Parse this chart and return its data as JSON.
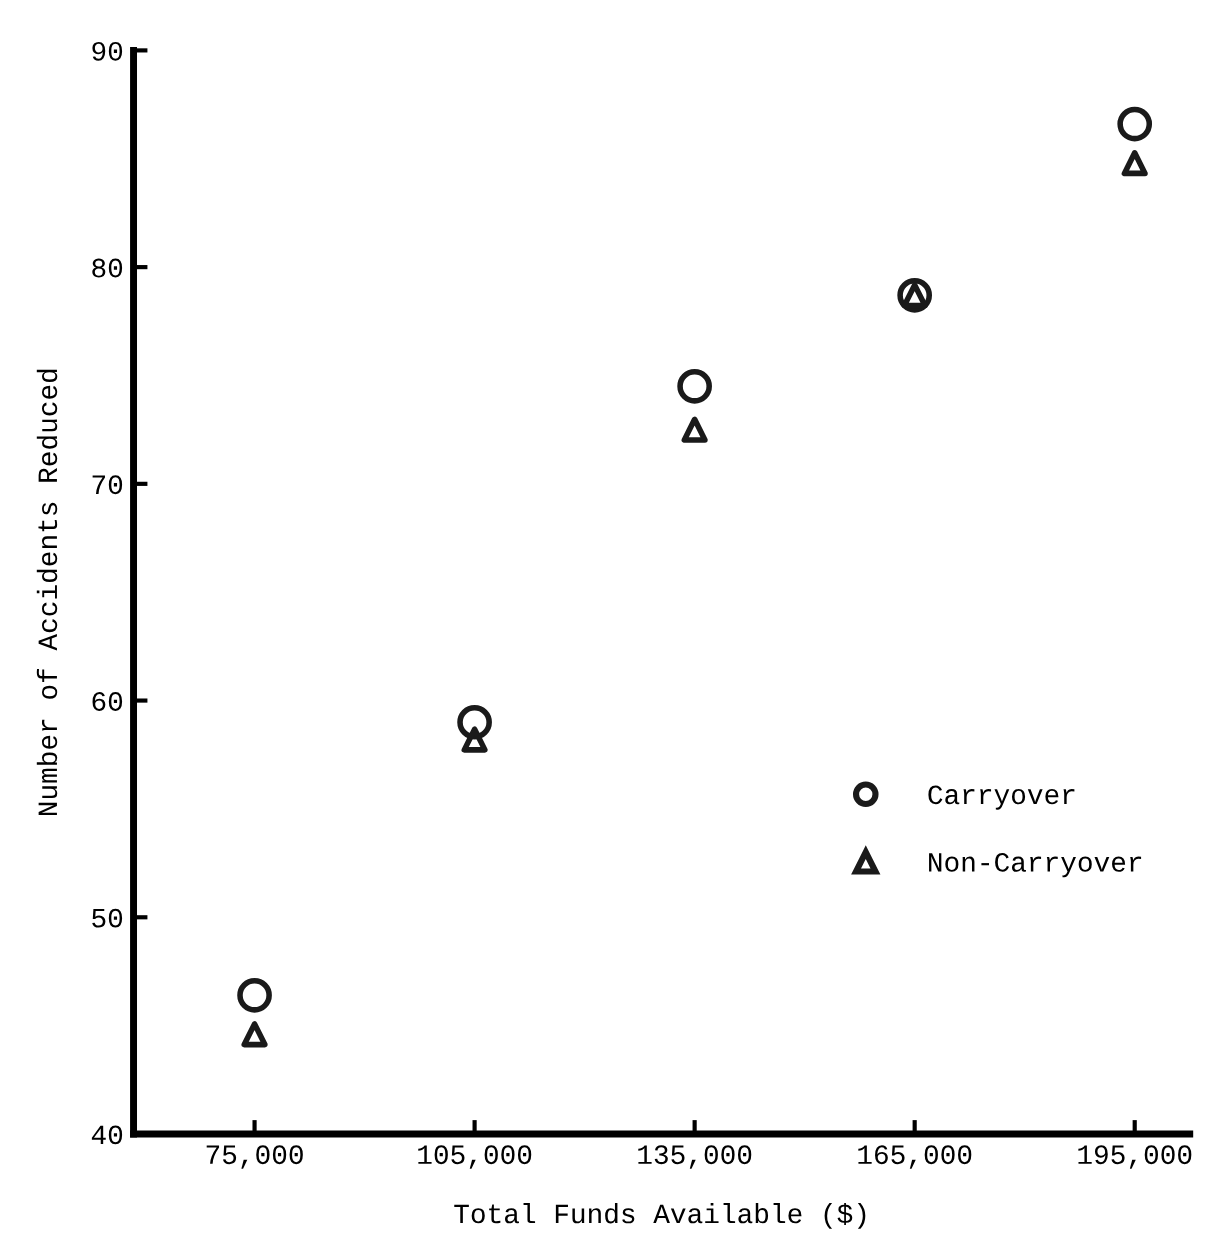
{
  "chart_data": {
    "type": "scatter",
    "xlabel": "Total Funds Available ($)",
    "ylabel": "Number of Accidents Reduced",
    "categories": [
      "75,000",
      "105,000",
      "135,000",
      "165,000",
      "195,000"
    ],
    "ylim": [
      40,
      90
    ],
    "yticks": [
      40,
      50,
      60,
      70,
      80,
      90
    ],
    "grid": false,
    "legend": "right",
    "series": [
      {
        "name": "Carryover",
        "color": "#1a1a1a",
        "marker": "circle",
        "values": [
          46.4,
          59.0,
          74.5,
          78.7,
          86.6
        ]
      },
      {
        "name": "Non-Carryover",
        "color": "#1a1a1a",
        "marker": "triangle",
        "values": [
          44.6,
          58.2,
          72.5,
          78.7,
          84.8
        ]
      }
    ]
  }
}
